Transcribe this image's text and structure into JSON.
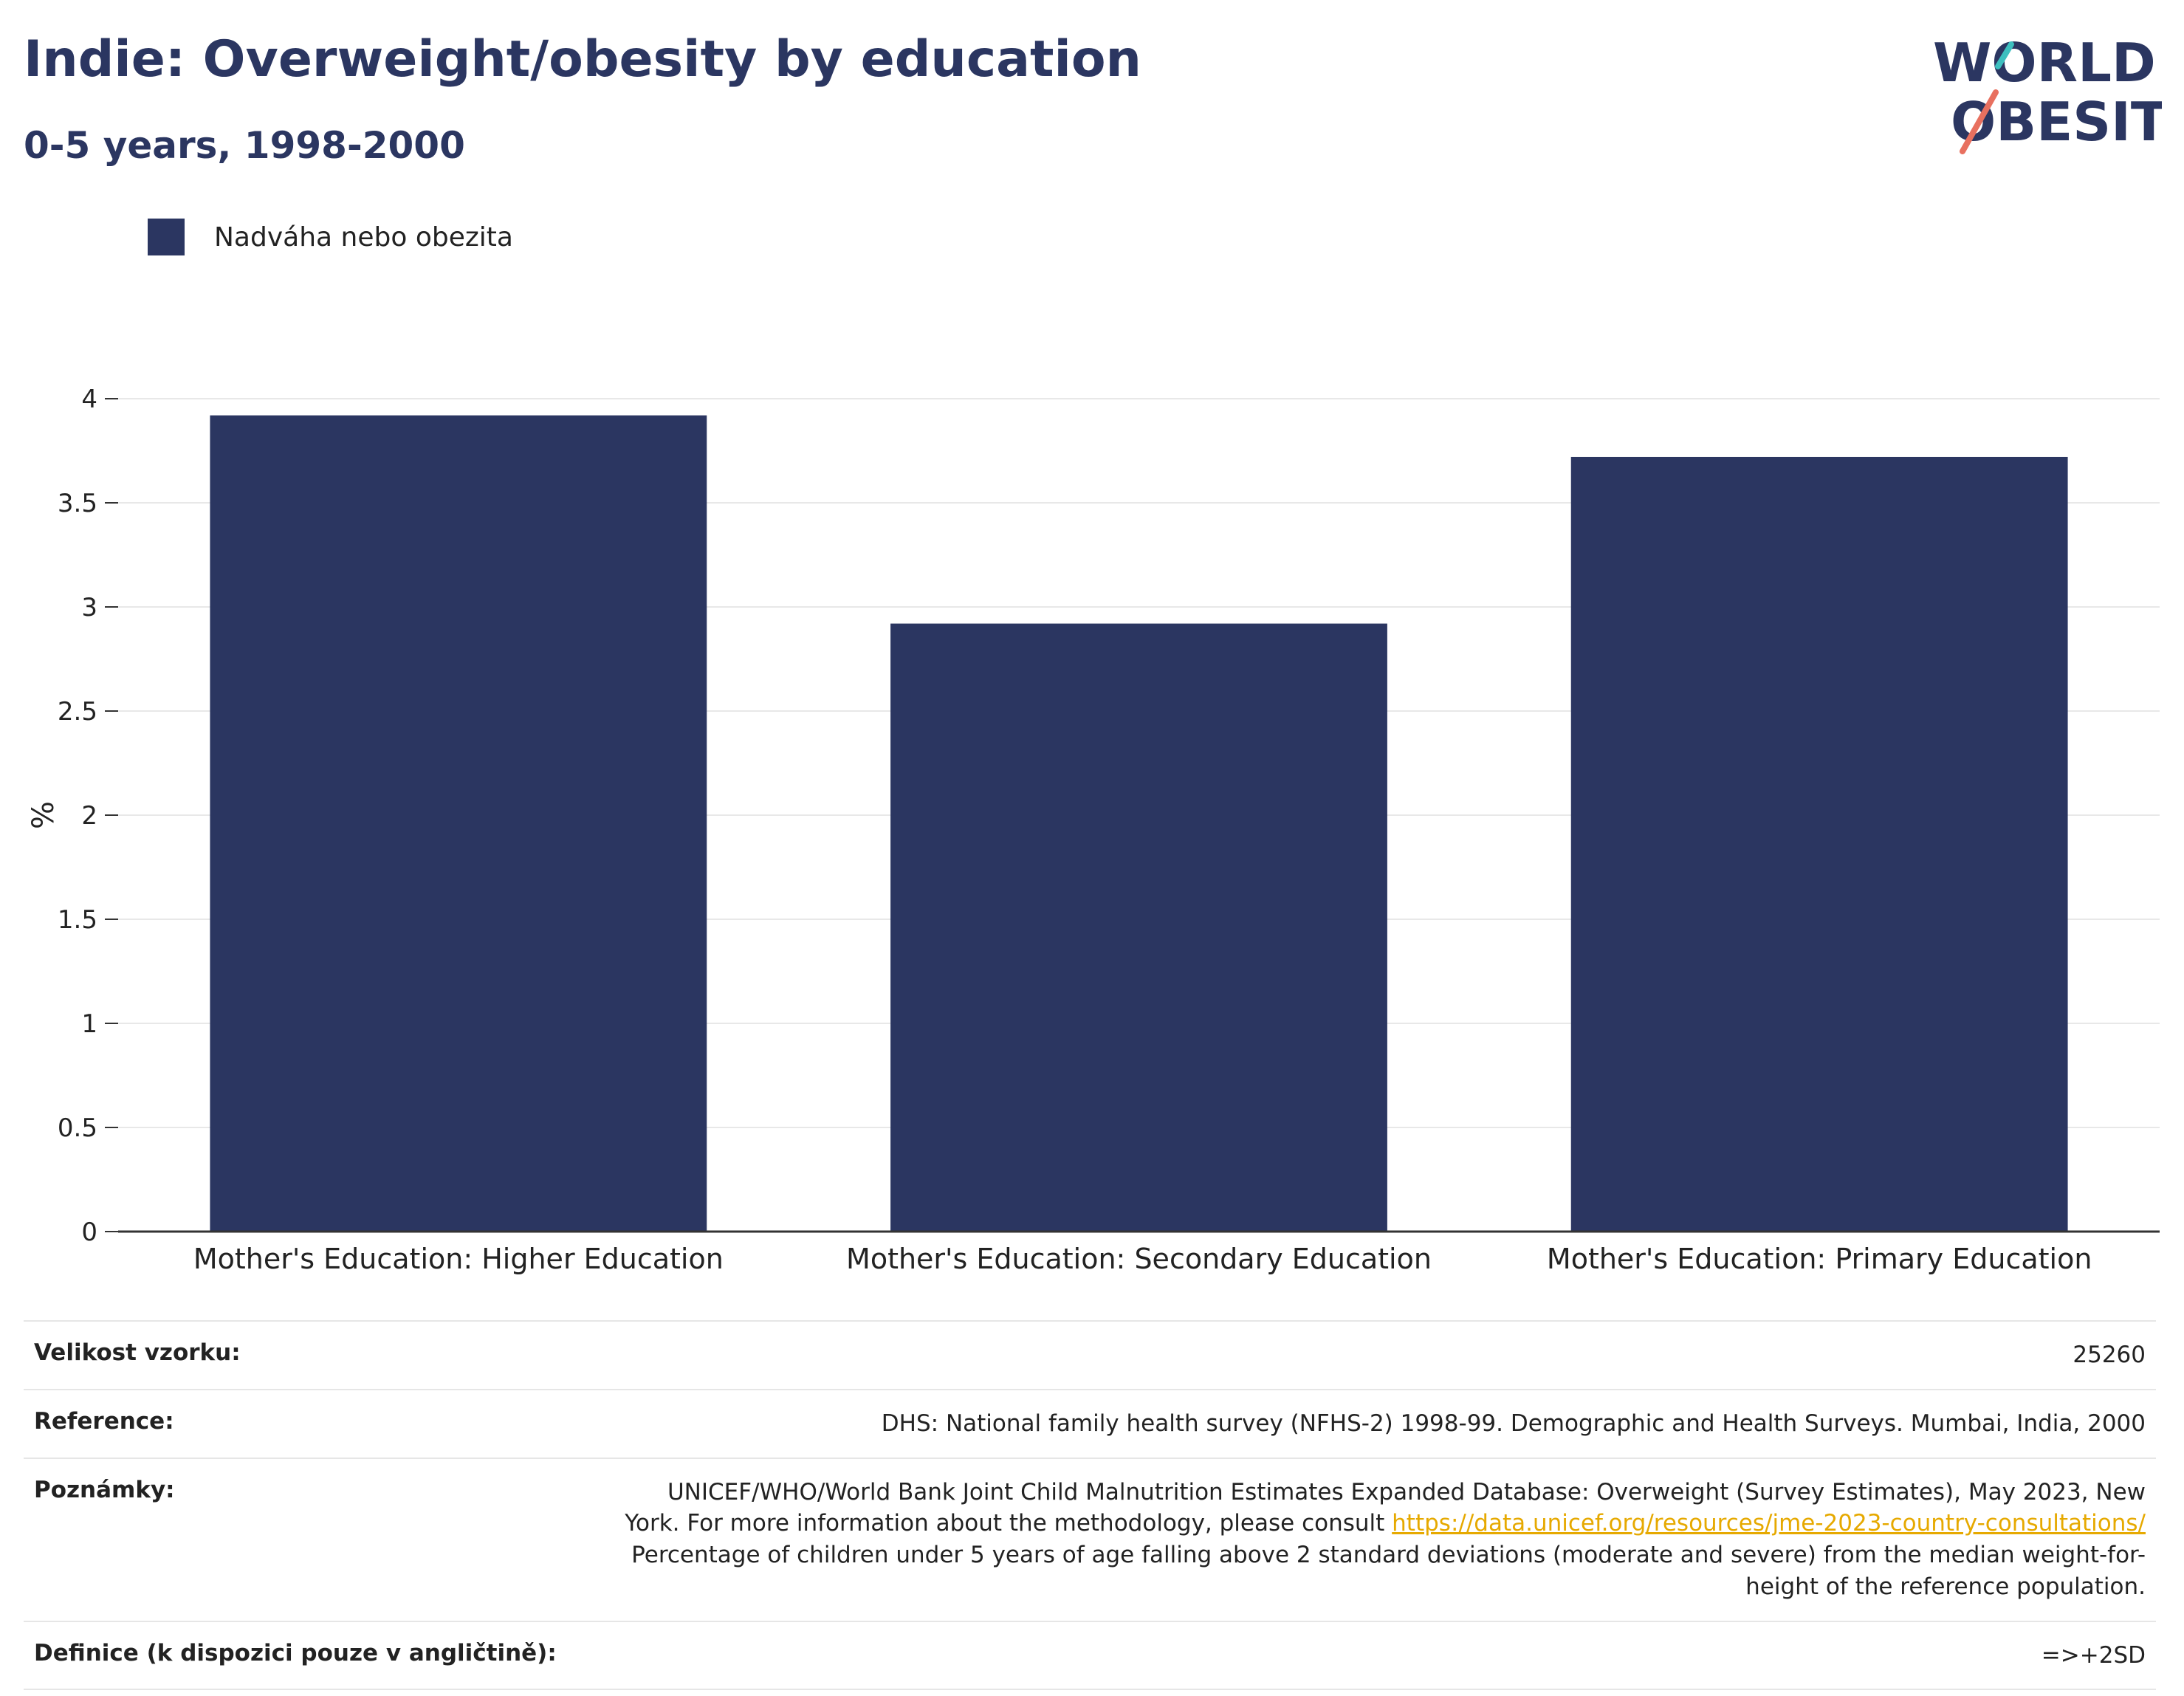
{
  "header": {
    "title": "Indie: Overweight/obesity by education",
    "subtitle": "0-5 years, 1998-2000",
    "logo_line1": "WORLD",
    "logo_line2": "OBESITY"
  },
  "colors": {
    "bar": "#2b3661",
    "title": "#2b3661",
    "grid": "#e8e8e8",
    "axis": "#333333",
    "link": "#e6a900",
    "logo_teal": "#3dbfbf",
    "logo_coral": "#e8705f"
  },
  "chart_data": {
    "type": "bar",
    "title": "Indie: Overweight/obesity by education",
    "subtitle": "0-5 years, 1998-2000",
    "xlabel": "",
    "ylabel": "%",
    "categories": [
      "Mother's Education: Higher Education",
      "Mother's Education: Secondary Education",
      "Mother's Education: Primary Education"
    ],
    "series": [
      {
        "name": "Nadváha nebo obezita",
        "values": [
          3.92,
          2.92,
          3.72
        ]
      }
    ],
    "ylim": [
      0,
      4
    ],
    "yticks": [
      "0",
      "0.5",
      "1",
      "1.5",
      "2",
      "2.5",
      "3",
      "3.5",
      "4"
    ],
    "grid": true,
    "legend_position": "top-left"
  },
  "info": {
    "rows": [
      {
        "key": "Velikost vzorku:",
        "value": "25260"
      },
      {
        "key": "Reference:",
        "value": "DHS: National family health survey (NFHS-2) 1998-99. Demographic and Health Surveys. Mumbai, India, 2000"
      },
      {
        "key": "Poznámky:",
        "value_part1": "UNICEF/WHO/World Bank Joint Child Malnutrition Estimates Expanded Database: Overweight (Survey Estimates), May 2023, New York. For more information about the methodology, please consult",
        "link": "https://data.unicef.org/resources/jme-2023-country-consultations/",
        "value_part2": "Percentage of children under 5 years of age falling above 2 standard deviations (moderate and severe) from the median weight-for-height of the reference population."
      },
      {
        "key": "Definice (k dispozici pouze v angličtině):",
        "value": "=>+2SD"
      }
    ]
  }
}
